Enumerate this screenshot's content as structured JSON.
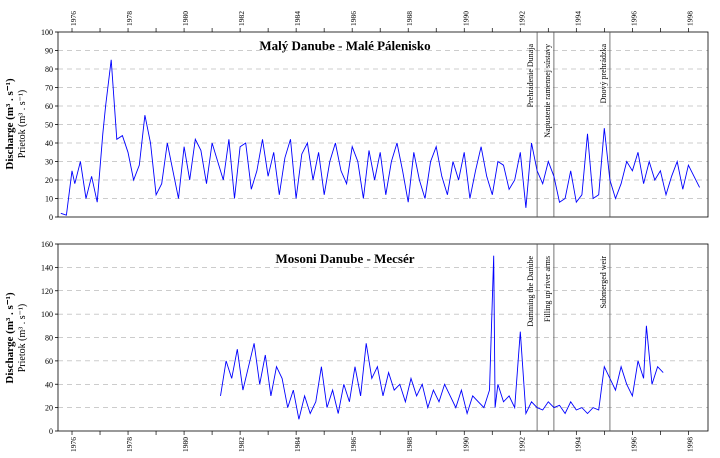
{
  "chart_data": [
    {
      "type": "line",
      "title": "Malý Danube - Malé Pálenisko",
      "ylabel": "Discharge (m³ . s⁻¹)",
      "ylabel2": "Prietok (m³ . s⁻¹)",
      "ylim": [
        0,
        100
      ],
      "yticks": [
        0,
        10,
        20,
        30,
        40,
        50,
        60,
        70,
        80,
        90,
        100
      ],
      "xlim": [
        1975.5,
        1998.7
      ],
      "xticks": [
        "1976",
        "1978",
        "1980",
        "1982",
        "1984",
        "1986",
        "1988",
        "1990",
        "1992",
        "1994",
        "1996",
        "1998"
      ],
      "xticks_at": [
        1976,
        1978,
        1980,
        1982,
        1984,
        1986,
        1988,
        1990,
        1992,
        1994,
        1996,
        1998
      ],
      "grid": "horizontal-dashed",
      "color": "#0000ff",
      "series": [
        {
          "x": [
            1975.6,
            1975.8,
            1976.0,
            1976.1,
            1976.3,
            1976.5,
            1976.7,
            1976.9,
            1977.1,
            1977.2,
            1977.4,
            1977.6,
            1977.8,
            1978.0,
            1978.2,
            1978.4,
            1978.6,
            1978.8,
            1979.0,
            1979.2,
            1979.4,
            1979.6,
            1979.8,
            1980.0,
            1980.2,
            1980.4,
            1980.6,
            1980.8,
            1981.0,
            1981.2,
            1981.4,
            1981.6,
            1981.8,
            1982.0,
            1982.2,
            1982.4,
            1982.6,
            1982.8,
            1983.0,
            1983.2,
            1983.4,
            1983.6,
            1983.8,
            1984.0,
            1984.2,
            1984.4,
            1984.6,
            1984.8,
            1985.0,
            1985.2,
            1985.4,
            1985.6,
            1985.8,
            1986.0,
            1986.2,
            1986.4,
            1986.6,
            1986.8,
            1987.0,
            1987.2,
            1987.4,
            1987.6,
            1987.8,
            1988.0,
            1988.2,
            1988.4,
            1988.6,
            1988.8,
            1989.0,
            1989.2,
            1989.4,
            1989.6,
            1989.8,
            1990.0,
            1990.2,
            1990.4,
            1990.6,
            1990.8,
            1991.0,
            1991.2,
            1991.4,
            1991.6,
            1991.8,
            1992.0,
            1992.2,
            1992.4,
            1992.6,
            1992.8,
            1993.0,
            1993.2,
            1993.4,
            1993.6,
            1993.8,
            1994.0,
            1994.2,
            1994.4,
            1994.6,
            1994.8,
            1995.0,
            1995.2,
            1995.4,
            1995.6,
            1995.8,
            1996.0,
            1996.2,
            1996.4,
            1996.6,
            1996.8,
            1997.0,
            1997.2,
            1997.4,
            1997.6,
            1997.8,
            1998.0,
            1998.2,
            1998.4
          ],
          "y": [
            2,
            1,
            25,
            18,
            30,
            10,
            22,
            8,
            45,
            60,
            85,
            42,
            44,
            35,
            20,
            28,
            55,
            40,
            12,
            18,
            40,
            25,
            10,
            38,
            20,
            42,
            36,
            18,
            40,
            30,
            20,
            42,
            10,
            38,
            40,
            15,
            25,
            42,
            22,
            35,
            12,
            32,
            42,
            10,
            34,
            40,
            20,
            35,
            12,
            30,
            40,
            25,
            18,
            38,
            30,
            10,
            36,
            20,
            35,
            12,
            30,
            40,
            25,
            8,
            35,
            20,
            10,
            30,
            38,
            22,
            12,
            30,
            20,
            35,
            10,
            25,
            38,
            22,
            12,
            30,
            28,
            15,
            20,
            35,
            5,
            40,
            25,
            18,
            30,
            22,
            8,
            10,
            25,
            8,
            12,
            45,
            10,
            12,
            48,
            20,
            10,
            18,
            30,
            25,
            35,
            18,
            30,
            20,
            25,
            12,
            22,
            30,
            15,
            28,
            22,
            16
          ]
        }
      ],
      "annotations": [
        "Prehradenie Dunaja",
        "Napustenie ramennej sústavy",
        "Dnový prehrádzka"
      ],
      "annotations_x": [
        1992.6,
        1993.2,
        1995.2
      ]
    },
    {
      "type": "line",
      "title": "Mosoni Danube - Mecsér",
      "ylabel": "Discharge (m³ . s⁻¹)",
      "ylabel2": "Prietok (m³ . s⁻¹)",
      "ylim": [
        0,
        160
      ],
      "yticks": [
        0,
        20,
        40,
        60,
        80,
        100,
        120,
        140,
        160
      ],
      "xlim": [
        1975.5,
        1998.7
      ],
      "xticks": [
        "1976",
        "1978",
        "1980",
        "1982",
        "1984",
        "1986",
        "1988",
        "1990",
        "1992",
        "1994",
        "1996",
        "1998"
      ],
      "xticks_at": [
        1976,
        1978,
        1980,
        1982,
        1984,
        1986,
        1988,
        1990,
        1992,
        1994,
        1996,
        1998
      ],
      "grid": "horizontal-dashed",
      "color": "#0000ff",
      "series": [
        {
          "x": [
            1981.3,
            1981.5,
            1981.7,
            1981.9,
            1982.1,
            1982.3,
            1982.5,
            1982.7,
            1982.9,
            1983.1,
            1983.3,
            1983.5,
            1983.7,
            1983.9,
            1984.1,
            1984.3,
            1984.5,
            1984.7,
            1984.9,
            1985.1,
            1985.3,
            1985.5,
            1985.7,
            1985.9,
            1986.1,
            1986.3,
            1986.5,
            1986.7,
            1986.9,
            1987.1,
            1987.3,
            1987.5,
            1987.7,
            1987.9,
            1988.1,
            1988.3,
            1988.5,
            1988.7,
            1988.9,
            1989.1,
            1989.3,
            1989.5,
            1989.7,
            1989.9,
            1990.1,
            1990.3,
            1990.5,
            1990.7,
            1990.9,
            1991.05,
            1991.1,
            1991.2,
            1991.4,
            1991.6,
            1991.8,
            1992.0,
            1992.2,
            1992.4,
            1992.6,
            1992.8,
            1993.0,
            1993.2,
            1993.4,
            1993.6,
            1993.8,
            1994.0,
            1994.2,
            1994.4,
            1994.6,
            1994.8,
            1995.0,
            1995.2,
            1995.4,
            1995.6,
            1995.8,
            1996.0,
            1996.2,
            1996.4,
            1996.5,
            1996.7,
            1996.9,
            1997.1
          ],
          "y": [
            30,
            60,
            45,
            70,
            35,
            55,
            75,
            40,
            65,
            30,
            55,
            45,
            20,
            35,
            10,
            30,
            15,
            25,
            55,
            20,
            35,
            15,
            40,
            25,
            55,
            30,
            75,
            45,
            55,
            30,
            50,
            35,
            40,
            25,
            45,
            30,
            40,
            20,
            35,
            25,
            40,
            30,
            20,
            35,
            15,
            30,
            25,
            20,
            35,
            150,
            20,
            40,
            25,
            30,
            20,
            85,
            15,
            25,
            20,
            18,
            25,
            20,
            22,
            15,
            25,
            18,
            20,
            15,
            20,
            18,
            55,
            45,
            35,
            55,
            40,
            30,
            60,
            45,
            90,
            40,
            55,
            50
          ]
        }
      ],
      "annotations": [
        "Damming the Danube",
        "Filling up river arms",
        "Submerged weir"
      ],
      "annotations_x": [
        1992.6,
        1993.2,
        1995.2
      ]
    }
  ]
}
